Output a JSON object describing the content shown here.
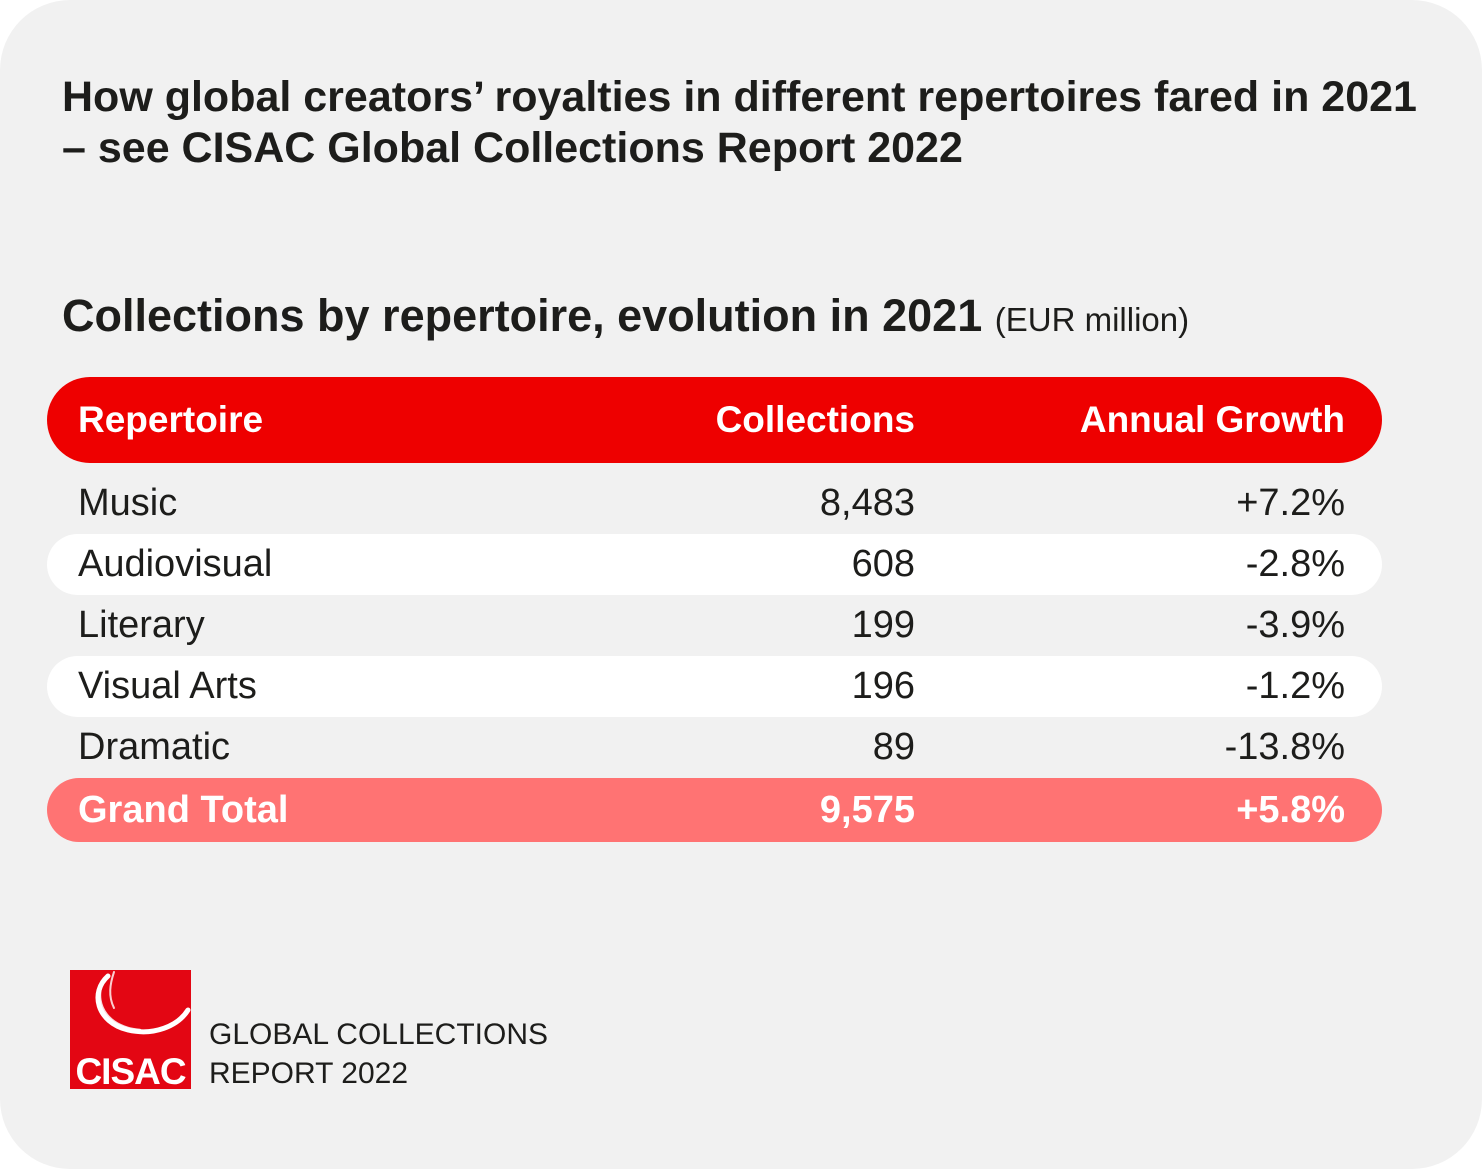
{
  "header": {
    "title": "How global creators’ royalties in different repertoires fared in 2021 – see CISAC Global Collections Report 2022",
    "subtitle": "Collections by repertoire, evolution in 2021",
    "subtitle_unit": "(EUR million)"
  },
  "colors": {
    "header_row": "#ee0000",
    "total_row": "#ff7373",
    "background": "#f1f1f1",
    "alt_row": "#ffffff",
    "logo": "#e30613"
  },
  "chart_data": {
    "type": "table",
    "columns": [
      "Repertoire",
      "Collections",
      "Annual Growth"
    ],
    "rows": [
      {
        "repertoire": "Music",
        "collections": "8,483",
        "growth": "+7.2%"
      },
      {
        "repertoire": "Audiovisual",
        "collections": "608",
        "growth": "-2.8%"
      },
      {
        "repertoire": "Literary",
        "collections": "199",
        "growth": "-3.9%"
      },
      {
        "repertoire": "Visual Arts",
        "collections": "196",
        "growth": "-1.2%"
      },
      {
        "repertoire": "Dramatic",
        "collections": "89",
        "growth": "-13.8%"
      }
    ],
    "total": {
      "repertoire": "Grand Total",
      "collections": "9,575",
      "growth": "+5.8%"
    }
  },
  "footer": {
    "logo_text": "CISAC",
    "line1": "GLOBAL COLLECTIONS",
    "line2": "REPORT 2022"
  }
}
